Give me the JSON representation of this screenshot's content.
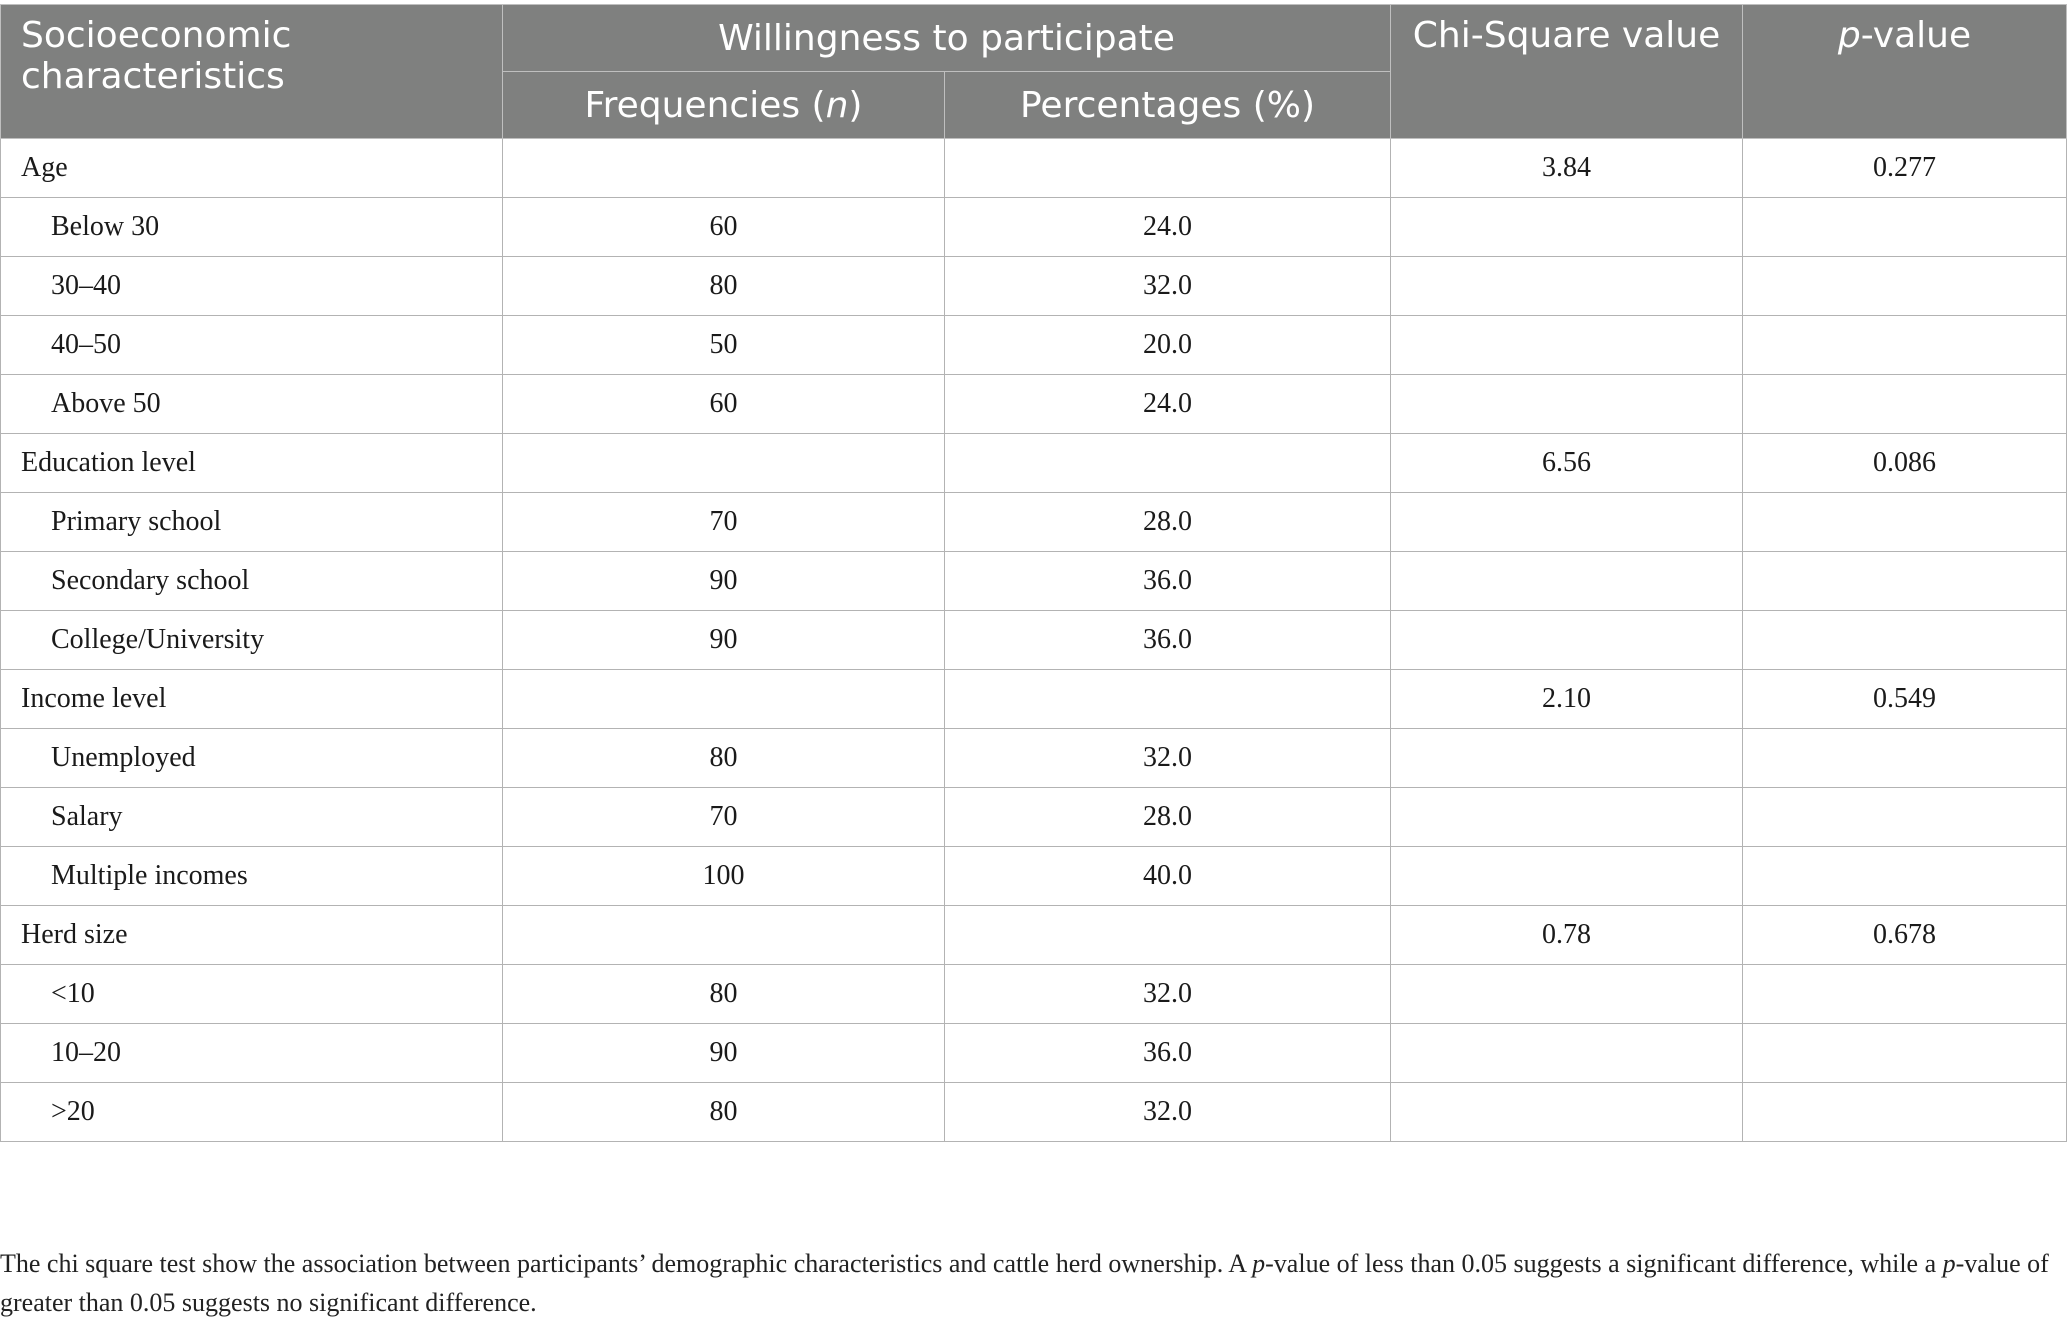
{
  "table": {
    "headers": {
      "socio": "Socioeconomic characteristics",
      "willingness": "Willingness to participate",
      "freq_prefix": "Frequencies (",
      "freq_italic": "n",
      "freq_suffix": ")",
      "percent": "Percentages (%)",
      "chi": "Chi-Square value",
      "p_italic": "p",
      "p_suffix": "-value"
    },
    "rows": [
      {
        "label": "Age",
        "freq": "",
        "pct": "",
        "chi": "3.84",
        "p": "0.277"
      },
      {
        "label": "Below 30",
        "freq": "60",
        "pct": "24.0",
        "chi": "",
        "p": ""
      },
      {
        "label": "30–40",
        "freq": "80",
        "pct": "32.0",
        "chi": "",
        "p": ""
      },
      {
        "label": "40–50",
        "freq": "50",
        "pct": "20.0",
        "chi": "",
        "p": ""
      },
      {
        "label": "Above 50",
        "freq": "60",
        "pct": "24.0",
        "chi": "",
        "p": ""
      },
      {
        "label": "Education level",
        "freq": "",
        "pct": "",
        "chi": "6.56",
        "p": "0.086"
      },
      {
        "label": "Primary school",
        "freq": "70",
        "pct": "28.0",
        "chi": "",
        "p": ""
      },
      {
        "label": "Secondary school",
        "freq": "90",
        "pct": "36.0",
        "chi": "",
        "p": ""
      },
      {
        "label": "College/University",
        "freq": "90",
        "pct": "36.0",
        "chi": "",
        "p": ""
      },
      {
        "label": "Income level",
        "freq": "",
        "pct": "",
        "chi": "2.10",
        "p": "0.549"
      },
      {
        "label": "Unemployed",
        "freq": "80",
        "pct": "32.0",
        "chi": "",
        "p": ""
      },
      {
        "label": "Salary",
        "freq": "70",
        "pct": "28.0",
        "chi": "",
        "p": ""
      },
      {
        "label": "Multiple incomes",
        "freq": "100",
        "pct": "40.0",
        "chi": "",
        "p": ""
      },
      {
        "label": "Herd size",
        "freq": "",
        "pct": "",
        "chi": "0.78",
        "p": "0.678"
      },
      {
        "label": "<10",
        "freq": "80",
        "pct": "32.0",
        "chi": "",
        "p": ""
      },
      {
        "label": "10–20",
        "freq": "90",
        "pct": "36.0",
        "chi": "",
        "p": ""
      },
      {
        "label": ">20",
        "freq": "80",
        "pct": "32.0",
        "chi": "",
        "p": ""
      }
    ]
  },
  "caption": {
    "part1": "The chi square test show the association between participants’ demographic characteristics and cattle herd ownership. A ",
    "p1": "p",
    "part2": "-value of less than 0.05 suggests a significant difference, while a ",
    "p2": "p",
    "part3": "-value of greater than 0.05 suggests no significant difference."
  }
}
